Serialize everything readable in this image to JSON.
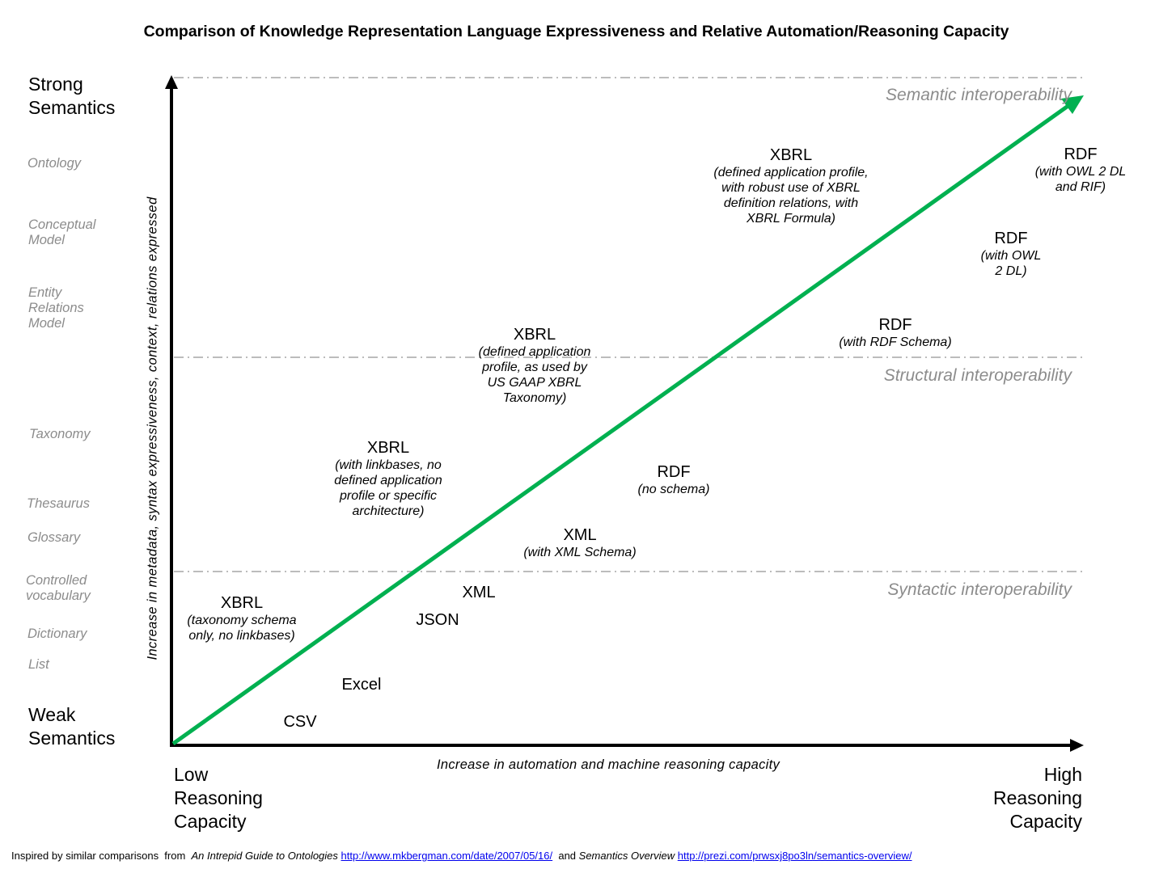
{
  "title": "Comparison of Knowledge Representation Language Expressiveness and Relative Automation/Reasoning Capacity",
  "y_axis": {
    "top": "Strong Semantics",
    "bottom": "Weak Semantics",
    "label": "Increase in metadata, syntax expressiveness, context, relations expressed",
    "scale": [
      "Ontology",
      "Conceptual Model",
      "Entity Relations Model",
      "Taxonomy",
      "Thesaurus",
      "Glossary",
      "Controlled vocabulary",
      "Dictionary",
      "List"
    ]
  },
  "x_axis": {
    "left": "Low Reasoning Capacity",
    "right": "High Reasoning Capacity",
    "label": "Increase in automation and machine reasoning capacity"
  },
  "bands": {
    "semantic": "Semantic interoperability",
    "structural": "Structural interoperability",
    "syntactic": "Syntactic interoperability"
  },
  "items": {
    "csv": {
      "name": "CSV"
    },
    "excel": {
      "name": "Excel"
    },
    "json": {
      "name": "JSON"
    },
    "xml": {
      "name": "XML"
    },
    "xbrl_schema": {
      "name": "XBRL",
      "sub": [
        "(taxonomy schema",
        "only, no linkbases)"
      ]
    },
    "xml_schema": {
      "name": "XML",
      "sub": [
        "(with XML Schema)"
      ]
    },
    "rdf_noschema": {
      "name": "RDF",
      "sub": [
        "(no schema)"
      ]
    },
    "xbrl_linkbases": {
      "name": "XBRL",
      "sub": [
        "(with linkbases, no",
        "defined application",
        "profile or specific",
        "architecture)"
      ]
    },
    "xbrl_gaap": {
      "name": "XBRL",
      "sub": [
        "(defined application",
        "profile, as used by",
        "US GAAP XBRL",
        "Taxonomy)"
      ]
    },
    "rdf_rdfs": {
      "name": "RDF",
      "sub": [
        "(with RDF Schema)"
      ]
    },
    "xbrl_formula": {
      "name": "XBRL",
      "sub": [
        "(defined application profile,",
        "with robust use of XBRL",
        "definition relations, with",
        "XBRL Formula)"
      ]
    },
    "rdf_owl": {
      "name": "RDF",
      "sub": [
        "(with OWL",
        "2 DL)"
      ]
    },
    "rdf_owl_rif": {
      "name": "RDF",
      "sub": [
        "(with OWL 2 DL",
        "and RIF)"
      ]
    }
  },
  "footer": {
    "prefix": "Inspired by similar comparisons  from  ",
    "ref1_title": "An Intrepid Guide to Ontologies",
    "ref1_url": "http://www.mkbergman.com/date/2007/05/16/",
    "mid": "  and ",
    "ref2_title": "Semantics Overview",
    "ref2_url": "http://prezi.com/prwsxj8po3ln/semantics-overview/"
  },
  "colors": {
    "trend_arrow": "#00b050",
    "band_line": "#a6a6a6",
    "muted_text": "#8c8c8c"
  }
}
